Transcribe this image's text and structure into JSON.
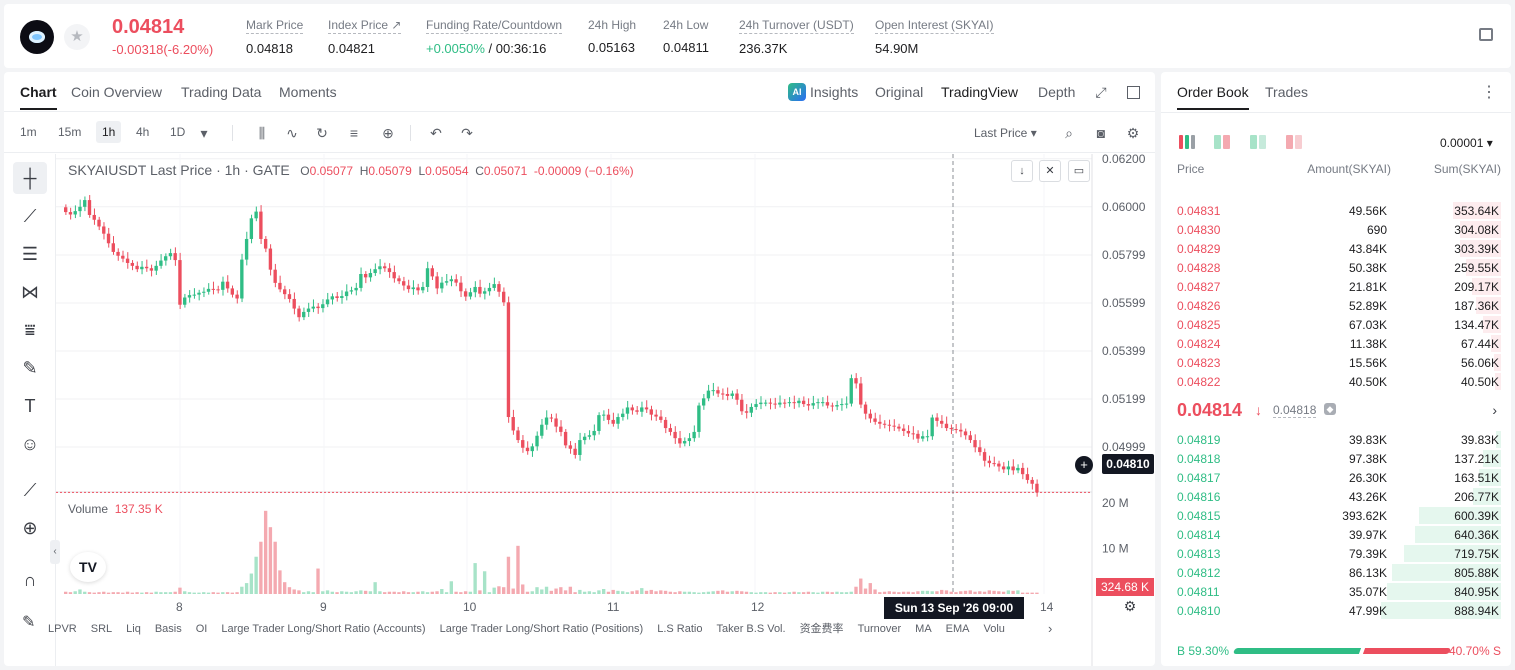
{
  "header": {
    "last_price": "0.04814",
    "price_change": "-0.00318(-6.20%)",
    "stats": [
      {
        "label": "Mark Price",
        "value": "0.04818"
      },
      {
        "label": "Index Price ↗",
        "value": "0.04821"
      },
      {
        "label": "Funding Rate/Countdown",
        "value_up": "+0.0050%",
        "value_rest": " / 00:36:16"
      },
      {
        "label": "24h High",
        "value": "0.05163"
      },
      {
        "label": "24h Low",
        "value": "0.04811"
      },
      {
        "label": "24h Turnover (USDT)",
        "value": "236.37K"
      },
      {
        "label": "Open Interest (SKYAI)",
        "value": "54.90M"
      }
    ]
  },
  "chart_panel": {
    "tabs": [
      "Chart",
      "Coin Overview",
      "Trading Data",
      "Moments"
    ],
    "view_tabs": {
      "insights": "Insights",
      "original": "Original",
      "tradingview": "TradingView",
      "depth": "Depth"
    },
    "ai_badge": "AI",
    "intervals": [
      "1m",
      "15m",
      "1h",
      "4h",
      "1D"
    ],
    "price_source": "Last Price",
    "legend": {
      "symbol": "SKYAIUSDT Last Price · 1h · GATE",
      "o_label": "O",
      "o": "0.05077",
      "h_label": "H",
      "h": "0.05079",
      "l_label": "L",
      "l": "0.05054",
      "c_label": "C",
      "c": "0.05071",
      "change": "-0.00009 (−0.16%)"
    },
    "volume_label": "Volume",
    "volume_value": "137.35 K",
    "current_price_tag": "0.04810",
    "current_volume_tag": "324.68 K",
    "crosshair_time": "Sun 13 Sep '26   09:00",
    "tv_logo": "TV",
    "indicators": [
      "LPVR",
      "SRL",
      "Liq",
      "Basis",
      "OI",
      "Large Trader Long/Short Ratio (Accounts)",
      "Large Trader Long/Short Ratio (Positions)",
      "L.S Ratio",
      "Taker B.S Vol.",
      "资金费率",
      "Turnover",
      "MA",
      "EMA",
      "Volu"
    ]
  },
  "chart_data": {
    "type": "candlestick",
    "title": "SKYAIUSDT Last Price · 1h · GATE",
    "price_axis": [
      "0.06200",
      "0.06000",
      "0.05799",
      "0.05599",
      "0.05399",
      "0.05199",
      "0.04999"
    ],
    "volume_axis": [
      "20 M",
      "10 M"
    ],
    "x_ticks": [
      "8",
      "9",
      "10",
      "11",
      "12",
      "14"
    ],
    "ylim": [
      0.0482,
      0.0622
    ],
    "volume_ylim": [
      0,
      22
    ],
    "colors": {
      "up": "#2fbd85",
      "down": "#ec4e5e",
      "up_vol": "#a7e3c8",
      "down_vol": "#f4a9b0"
    },
    "close_series": [
      0.05978,
      0.05968,
      0.05982,
      0.06,
      0.06028,
      0.05966,
      0.05946,
      0.05918,
      0.05888,
      0.05848,
      0.05812,
      0.05796,
      0.05784,
      0.05766,
      0.05754,
      0.0574,
      0.0575,
      0.05744,
      0.05734,
      0.05754,
      0.05776,
      0.05794,
      0.05807,
      0.05778,
      0.05592,
      0.05622,
      0.05632,
      0.05634,
      0.05642,
      0.05646,
      0.05658,
      0.05656,
      0.05654,
      0.05688,
      0.0566,
      0.05634,
      0.05618,
      0.0578,
      0.05866,
      0.05952,
      0.0598,
      0.05866,
      0.05826,
      0.05738,
      0.05683,
      0.05656,
      0.05636,
      0.05616,
      0.05576,
      0.0554,
      0.05562,
      0.05576,
      0.05584,
      0.05578,
      0.05594,
      0.05614,
      0.05627,
      0.0562,
      0.05628,
      0.05647,
      0.05652,
      0.05662,
      0.0572,
      0.05706,
      0.05724,
      0.0574,
      0.05752,
      0.05744,
      0.05728,
      0.05702,
      0.0569,
      0.05672,
      0.05657,
      0.05664,
      0.05652,
      0.05666,
      0.05744,
      0.0571,
      0.0566,
      0.05684,
      0.0569,
      0.05698,
      0.05684,
      0.05648,
      0.05626,
      0.05644,
      0.05666,
      0.05638,
      0.05648,
      0.05662,
      0.05678,
      0.05646,
      0.05602,
      0.05124,
      0.05068,
      0.05028,
      0.04996,
      0.04982,
      0.05002,
      0.05046,
      0.05092,
      0.05122,
      0.05118,
      0.05084,
      0.05062,
      0.05006,
      0.04992,
      0.04966,
      0.05028,
      0.05042,
      0.05048,
      0.05066,
      0.05132,
      0.05134,
      0.05112,
      0.05096,
      0.05124,
      0.05138,
      0.05164,
      0.05152,
      0.05146,
      0.05164,
      0.05156,
      0.05134,
      0.05126,
      0.05112,
      0.05078,
      0.05062,
      0.05036,
      0.05014,
      0.05024,
      0.05036,
      0.05062,
      0.05172,
      0.05202,
      0.05234,
      0.05236,
      0.05222,
      0.0522,
      0.05212,
      0.05222,
      0.05196,
      0.05148,
      0.05142,
      0.05166,
      0.05178,
      0.05184,
      0.05184,
      0.0518,
      0.05176,
      0.05184,
      0.05182,
      0.05186,
      0.05182,
      0.05192,
      0.05178,
      0.05172,
      0.05182,
      0.05186,
      0.05186,
      0.05172,
      0.05168,
      0.05174,
      0.05178,
      0.0518,
      0.05286,
      0.05264,
      0.05176,
      0.05138,
      0.05118,
      0.05104,
      0.05096,
      0.05092,
      0.05088,
      0.05084,
      0.05076,
      0.05066,
      0.05056,
      0.05054,
      0.05034,
      0.05044,
      0.05044,
      0.05122,
      0.05108,
      0.05096,
      0.05078,
      0.05074,
      0.05071,
      0.05064,
      0.05048,
      0.05028,
      0.04998,
      0.04978,
      0.04942,
      0.04932,
      0.0493,
      0.04918,
      0.04906,
      0.04918,
      0.04902,
      0.04912,
      0.04886,
      0.04862,
      0.04846,
      0.0481
    ],
    "volume_series_m": [
      0.5,
      0.4,
      0.6,
      1.0,
      0.5,
      0.4,
      0.3,
      0.4,
      0.5,
      0.3,
      0.4,
      0.4,
      0.3,
      0.5,
      0.3,
      0.4,
      0.3,
      0.4,
      0.3,
      0.5,
      0.4,
      0.4,
      0.4,
      0.5,
      1.4,
      0.6,
      0.4,
      0.3,
      0.3,
      0.4,
      0.3,
      0.4,
      0.3,
      0.4,
      0.4,
      0.3,
      0.4,
      1.6,
      2.4,
      4.5,
      8.2,
      11.5,
      18.3,
      14.7,
      11.5,
      5.2,
      2.6,
      1.5,
      1.0,
      0.8,
      0.4,
      0.6,
      0.4,
      5.6,
      0.6,
      0.8,
      0.5,
      0.4,
      0.6,
      0.5,
      0.4,
      0.6,
      0.8,
      0.7,
      0.6,
      2.6,
      0.6,
      0.4,
      0.5,
      0.5,
      0.4,
      0.6,
      0.4,
      0.4,
      0.5,
      0.6,
      0.4,
      0.5,
      0.6,
      1.1,
      0.4,
      2.8,
      0.5,
      0.4,
      0.6,
      0.5,
      6.8,
      0.8,
      5.0,
      0.4,
      1.4,
      1.7,
      1.5,
      8.2,
      1.2,
      10.6,
      2.1,
      0.5,
      0.6,
      1.5,
      1.0,
      1.6,
      0.7,
      1.2,
      1.5,
      0.8,
      1.6,
      0.4,
      0.9,
      0.5,
      0.6,
      0.4,
      0.8,
      1.1,
      0.5,
      0.9,
      0.7,
      0.6,
      0.4,
      0.6,
      0.8,
      1.3,
      0.7,
      0.9,
      0.6,
      0.8,
      0.7,
      0.5,
      0.4,
      0.6,
      0.5,
      0.5,
      0.4,
      0.3,
      0.4,
      0.5,
      0.6,
      0.7,
      0.8,
      0.5,
      0.6,
      0.7,
      0.6,
      0.5,
      0.4,
      0.3,
      0.4,
      0.4,
      0.3,
      0.4,
      0.4,
      0.3,
      0.4,
      0.5,
      0.4,
      0.4,
      0.5,
      0.4,
      0.3,
      0.5,
      0.5,
      0.4,
      0.5,
      0.4,
      0.4,
      0.5,
      1.6,
      3.4,
      1.2,
      2.4,
      1.0,
      0.4,
      0.5,
      0.6,
      0.5,
      0.4,
      0.5,
      0.5,
      0.4,
      0.6,
      0.7,
      0.7,
      0.6,
      0.6,
      0.9,
      0.8,
      0.5,
      0.4,
      0.6,
      0.7,
      0.8,
      0.5,
      0.6,
      0.5,
      0.8,
      0.7,
      0.6,
      0.5,
      0.8,
      0.7,
      0.8
    ]
  },
  "order_book": {
    "tabs": [
      "Order Book",
      "Trades"
    ],
    "precision": "0.00001",
    "headers": {
      "price": "Price",
      "amount": "Amount(SKYAI)",
      "sum": "Sum(SKYAI)"
    },
    "asks": [
      {
        "price": "0.04831",
        "amount": "49.56K",
        "sum": "353.64K",
        "depth": 0.4
      },
      {
        "price": "0.04830",
        "amount": "690",
        "sum": "304.08K",
        "depth": 0.34
      },
      {
        "price": "0.04829",
        "amount": "43.84K",
        "sum": "303.39K",
        "depth": 0.34
      },
      {
        "price": "0.04828",
        "amount": "50.38K",
        "sum": "259.55K",
        "depth": 0.29
      },
      {
        "price": "0.04827",
        "amount": "21.81K",
        "sum": "209.17K",
        "depth": 0.24
      },
      {
        "price": "0.04826",
        "amount": "52.89K",
        "sum": "187.36K",
        "depth": 0.21
      },
      {
        "price": "0.04825",
        "amount": "67.03K",
        "sum": "134.47K",
        "depth": 0.15
      },
      {
        "price": "0.04824",
        "amount": "11.38K",
        "sum": "67.44K",
        "depth": 0.08
      },
      {
        "price": "0.04823",
        "amount": "15.56K",
        "sum": "56.06K",
        "depth": 0.06
      },
      {
        "price": "0.04822",
        "amount": "40.50K",
        "sum": "40.50K",
        "depth": 0.05
      }
    ],
    "mid": {
      "price": "0.04814",
      "mark": "0.04818"
    },
    "bids": [
      {
        "price": "0.04819",
        "amount": "39.83K",
        "sum": "39.83K",
        "depth": 0.04
      },
      {
        "price": "0.04818",
        "amount": "97.38K",
        "sum": "137.21K",
        "depth": 0.15
      },
      {
        "price": "0.04817",
        "amount": "26.30K",
        "sum": "163.51K",
        "depth": 0.18
      },
      {
        "price": "0.04816",
        "amount": "43.26K",
        "sum": "206.77K",
        "depth": 0.23
      },
      {
        "price": "0.04815",
        "amount": "393.62K",
        "sum": "600.39K",
        "depth": 0.68
      },
      {
        "price": "0.04814",
        "amount": "39.97K",
        "sum": "640.36K",
        "depth": 0.72
      },
      {
        "price": "0.04813",
        "amount": "79.39K",
        "sum": "719.75K",
        "depth": 0.81
      },
      {
        "price": "0.04812",
        "amount": "86.13K",
        "sum": "805.88K",
        "depth": 0.91
      },
      {
        "price": "0.04811",
        "amount": "35.07K",
        "sum": "840.95K",
        "depth": 0.95
      },
      {
        "price": "0.04810",
        "amount": "47.99K",
        "sum": "888.94K",
        "depth": 1.0
      }
    ],
    "buy_ratio": "B 59.30%",
    "sell_ratio": "40.70% S",
    "buy_ratio_value": 0.593
  }
}
